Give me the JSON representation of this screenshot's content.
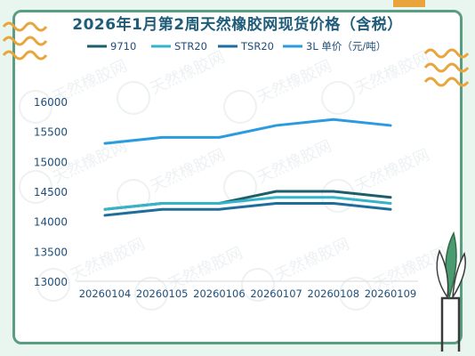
{
  "chart_data": {
    "type": "line",
    "title": "2026年1月第2周天然橡胶网现货价格（含税）",
    "xlabel": "",
    "ylabel": "",
    "categories": [
      "20260104",
      "20260105",
      "20260106",
      "20260107",
      "20260108",
      "20260109"
    ],
    "ylim": [
      13000,
      16000
    ],
    "yticks": [
      13000,
      13500,
      14000,
      14500,
      15000,
      15500,
      16000
    ],
    "grid": false,
    "legend_position": "top",
    "series": [
      {
        "name": "9710",
        "color": "#1d5e6b",
        "values": [
          14200,
          14300,
          14300,
          14500,
          14500,
          14400
        ]
      },
      {
        "name": "STR20",
        "color": "#35b3c9",
        "values": [
          14200,
          14300,
          14300,
          14400,
          14400,
          14300
        ]
      },
      {
        "name": "TSR20",
        "color": "#1e6d9a",
        "values": [
          14100,
          14200,
          14200,
          14300,
          14300,
          14200
        ]
      },
      {
        "name": "3L 单价（元/吨）",
        "color": "#2b9be0",
        "values": [
          15300,
          15400,
          15400,
          15600,
          15700,
          15600
        ]
      }
    ]
  },
  "decor": {
    "background_color": "#e9f6f0",
    "border_color": "#5a9e82",
    "wave_color": "#e9a53c",
    "watermark_text": "天然橡胶网"
  }
}
